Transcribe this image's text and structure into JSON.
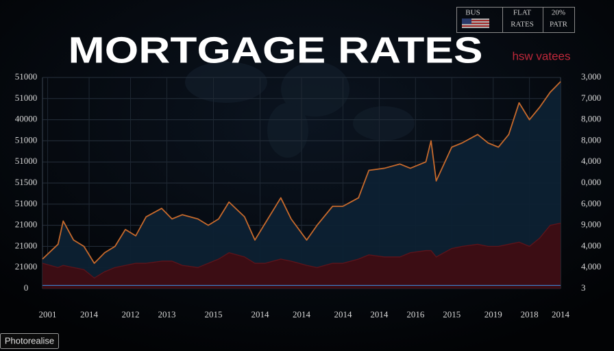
{
  "chart_data": {
    "type": "line",
    "title": "MORTGAGE RATES",
    "x": [
      0,
      3,
      4,
      6,
      8,
      10,
      12,
      14,
      16,
      18,
      20,
      23,
      25,
      27,
      30,
      32,
      34,
      36,
      39,
      41,
      43,
      46,
      48,
      51,
      53,
      56,
      58,
      61,
      63,
      66,
      69,
      71,
      74,
      75,
      76,
      79,
      81,
      84,
      86,
      88,
      90,
      92,
      94,
      96,
      98,
      100
    ],
    "series": [
      {
        "color": "#c86a2c",
        "fill": "#0d2133",
        "values": [
          1.4,
          2.1,
          3.2,
          2.3,
          2.0,
          1.2,
          1.7,
          2.0,
          2.8,
          2.5,
          3.4,
          3.8,
          3.3,
          3.5,
          3.3,
          3.0,
          3.3,
          4.1,
          3.4,
          2.3,
          3.1,
          4.3,
          3.3,
          2.3,
          3.0,
          3.9,
          3.9,
          4.3,
          5.6,
          5.7,
          5.9,
          5.7,
          6.0,
          7.0,
          5.1,
          6.7,
          6.9,
          7.3,
          6.9,
          6.7,
          7.3,
          8.8,
          8.0,
          8.6,
          9.3,
          9.8
        ]
      },
      {
        "color": "#5e141b",
        "fill": "#3f0d13",
        "values": [
          1.2,
          1.0,
          1.1,
          1.0,
          0.9,
          0.5,
          0.8,
          1.0,
          1.1,
          1.2,
          1.2,
          1.3,
          1.3,
          1.1,
          1.0,
          1.2,
          1.4,
          1.7,
          1.5,
          1.2,
          1.2,
          1.4,
          1.3,
          1.1,
          1.0,
          1.2,
          1.2,
          1.4,
          1.6,
          1.5,
          1.5,
          1.7,
          1.8,
          1.8,
          1.5,
          1.9,
          2.0,
          2.1,
          2.0,
          2.0,
          2.1,
          2.2,
          2.0,
          2.4,
          3.0,
          3.1
        ]
      },
      {
        "color": "#3c7cc4",
        "values": [
          0.15,
          0.15,
          0.15,
          0.15,
          0.15,
          0.15,
          0.15,
          0.15,
          0.15,
          0.15,
          0.15,
          0.15,
          0.15,
          0.15,
          0.15,
          0.15,
          0.15,
          0.15,
          0.15,
          0.15,
          0.15,
          0.15,
          0.15,
          0.15,
          0.15,
          0.15,
          0.15,
          0.15,
          0.15,
          0.15,
          0.15,
          0.15,
          0.15,
          0.15,
          0.15,
          0.15,
          0.15,
          0.15,
          0.15,
          0.15,
          0.15,
          0.15,
          0.15,
          0.15,
          0.15,
          0.15
        ]
      }
    ],
    "xlim": [
      0,
      100
    ],
    "xticks": [
      {
        "value": 1,
        "label": "2001"
      },
      {
        "value": 9,
        "label": "2014"
      },
      {
        "value": 17,
        "label": "2012"
      },
      {
        "value": 24,
        "label": "2013"
      },
      {
        "value": 33,
        "label": "2015"
      },
      {
        "value": 42,
        "label": "2014"
      },
      {
        "value": 50,
        "label": "2014"
      },
      {
        "value": 58,
        "label": "2014"
      },
      {
        "value": 65,
        "label": "2014"
      },
      {
        "value": 72,
        "label": "2016"
      },
      {
        "value": 79,
        "label": "2015"
      },
      {
        "value": 87,
        "label": "2019"
      },
      {
        "value": 94,
        "label": "2018"
      },
      {
        "value": 100,
        "label": "2014"
      }
    ],
    "ylim": [
      0,
      10
    ],
    "yticks": [
      {
        "value": 0,
        "label": "0"
      },
      {
        "value": 1,
        "label": "21000"
      },
      {
        "value": 2,
        "label": "21000"
      },
      {
        "value": 3,
        "label": "21000"
      },
      {
        "value": 4,
        "label": "51000"
      },
      {
        "value": 5,
        "label": "51500"
      },
      {
        "value": 6,
        "label": "51000"
      },
      {
        "value": 7,
        "label": "51000"
      },
      {
        "value": 8,
        "label": "40000"
      },
      {
        "value": 9,
        "label": "51000"
      },
      {
        "value": 10,
        "label": "51000"
      }
    ],
    "y2lim": [
      0,
      10
    ],
    "y2ticks": [
      {
        "value": 0,
        "label": "3"
      },
      {
        "value": 1,
        "label": "4,000"
      },
      {
        "value": 2,
        "label": "4,000"
      },
      {
        "value": 3,
        "label": "9,000"
      },
      {
        "value": 4,
        "label": "6,000"
      },
      {
        "value": 5,
        "label": "0,000"
      },
      {
        "value": 6,
        "label": "4,000"
      },
      {
        "value": 7,
        "label": "8,000"
      },
      {
        "value": 8,
        "label": "8,000"
      },
      {
        "value": 9,
        "label": "7,000"
      },
      {
        "value": 10,
        "label": "3,000"
      }
    ],
    "grid": true
  },
  "header_box": {
    "cells": [
      [
        "BUS"
      ],
      [
        "FLAT",
        "RATES"
      ],
      [
        "20%",
        "PATR"
      ]
    ]
  },
  "brand": "hsw vatees",
  "footer_button": "Photorealise"
}
